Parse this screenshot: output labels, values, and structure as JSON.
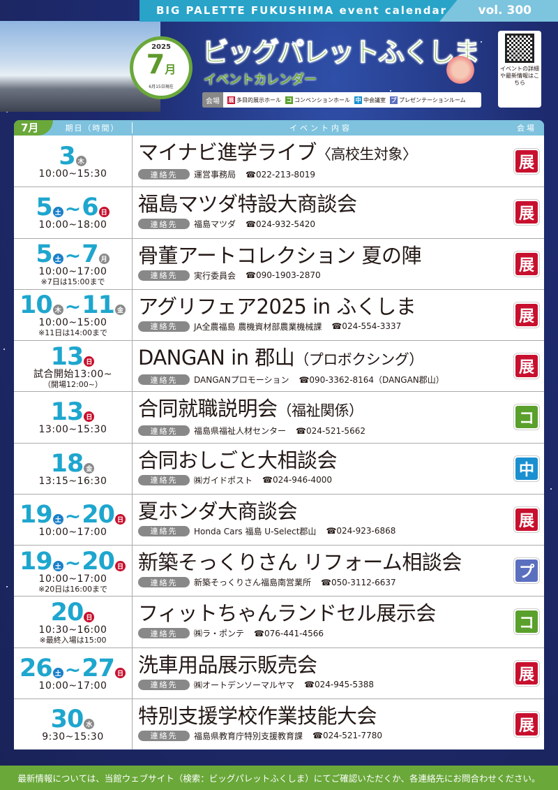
{
  "header": {
    "banner": "BIG PALETTE FUKUSHIMA event calendar",
    "volume": "vol. 300",
    "year": "2025",
    "month": "7",
    "month_suffix": "月",
    "as_of": "6月15日現在",
    "title": "ビッグパレットふくしま",
    "subtitle": "イベントカレンダー",
    "qr_caption": "イベントの詳細や最新情報はこちら"
  },
  "legend": {
    "label": "会場",
    "items": [
      {
        "badge": "展",
        "name": "多目的展示ホール",
        "color": "#c8102e"
      },
      {
        "badge": "コ",
        "name": "コンベンションホール",
        "color": "#5aa02c"
      },
      {
        "badge": "中",
        "name": "中会議室",
        "color": "#1a90d0"
      },
      {
        "badge": "プ",
        "name": "プレゼンテーションルーム",
        "color": "#5b6fbf"
      }
    ]
  },
  "colors": {
    "weekday": "#8a8a8a",
    "saturday": "#1a7fc8",
    "sunday": "#c8102e",
    "date": "#1ea6ce",
    "green": "#6aa83a"
  },
  "table": {
    "month_tab": "7月",
    "col_date": "期日（時間）",
    "col_event": "イベント内容",
    "col_venue": "会場",
    "contact_label": "連絡先",
    "events": [
      {
        "dates": [
          {
            "d": "3",
            "w": "木",
            "t": "weekday"
          }
        ],
        "time": "10:00~15:30",
        "note": "",
        "name": "マイナビ進学ライブ",
        "name_sub": "〈高校生対象〉",
        "contact": "運営事務局",
        "phone": "☎022-213-8019",
        "venue": "展",
        "venue_color": "#c8102e"
      },
      {
        "dates": [
          {
            "d": "5",
            "w": "土",
            "t": "saturday"
          },
          {
            "d": "6",
            "w": "日",
            "t": "sunday"
          }
        ],
        "time": "10:00~18:00",
        "note": "",
        "name": "福島マツダ特設大商談会",
        "name_sub": "",
        "contact": "福島マツダ",
        "phone": "☎024-932-5420",
        "venue": "展",
        "venue_color": "#c8102e"
      },
      {
        "dates": [
          {
            "d": "5",
            "w": "土",
            "t": "saturday"
          },
          {
            "d": "7",
            "w": "月",
            "t": "weekday"
          }
        ],
        "time": "10:00~17:00",
        "note": "※7日は15:00まで",
        "name": "骨董アートコレクション 夏の陣",
        "name_sub": "",
        "contact": "実行委員会",
        "phone": "☎090-1903-2870",
        "venue": "展",
        "venue_color": "#c8102e"
      },
      {
        "dates": [
          {
            "d": "10",
            "w": "木",
            "t": "weekday"
          },
          {
            "d": "11",
            "w": "金",
            "t": "weekday"
          }
        ],
        "time": "10:00~15:00",
        "note": "※11日は14:00まで",
        "name": "アグリフェア2025 in ふくしま",
        "name_sub": "",
        "contact": "JA全農福島 農機資材部農業機械課",
        "phone": "☎024-554-3337",
        "venue": "展",
        "venue_color": "#c8102e"
      },
      {
        "dates": [
          {
            "d": "13",
            "w": "日",
            "t": "sunday"
          }
        ],
        "time": "試合開始13:00~",
        "note": "（開場12:00~）",
        "name": "DANGAN in 郡山",
        "name_sub": "（プロボクシング）",
        "contact": "DANGANプロモーション",
        "phone": "☎090-3362-8164（DANGAN郡山）",
        "venue": "展",
        "venue_color": "#c8102e"
      },
      {
        "dates": [
          {
            "d": "13",
            "w": "日",
            "t": "sunday"
          }
        ],
        "time": "13:00~15:30",
        "note": "",
        "name": "合同就職説明会",
        "name_sub": "（福祉関係）",
        "contact": "福島県福祉人材センター",
        "phone": "☎024-521-5662",
        "venue": "コ",
        "venue_color": "#5aa02c"
      },
      {
        "dates": [
          {
            "d": "18",
            "w": "金",
            "t": "weekday"
          }
        ],
        "time": "13:15~16:30",
        "note": "",
        "name": "合同おしごと大相談会",
        "name_sub": "",
        "contact": "㈱ガイドポスト",
        "phone": "☎024-946-4000",
        "venue": "中",
        "venue_color": "#1a90d0"
      },
      {
        "dates": [
          {
            "d": "19",
            "w": "土",
            "t": "saturday"
          },
          {
            "d": "20",
            "w": "日",
            "t": "sunday"
          }
        ],
        "time": "10:00~17:00",
        "note": "",
        "name": "夏ホンダ大商談会",
        "name_sub": "",
        "contact": "Honda Cars 福島 U-Select郡山",
        "phone": "☎024-923-6868",
        "venue": "展",
        "venue_color": "#c8102e"
      },
      {
        "dates": [
          {
            "d": "19",
            "w": "土",
            "t": "saturday"
          },
          {
            "d": "20",
            "w": "日",
            "t": "sunday"
          }
        ],
        "time": "10:00~17:00",
        "note": "※20日は16:00まで",
        "name": "新築そっくりさん リフォーム相談会",
        "name_sub": "",
        "contact": "新築そっくりさん福島南営業所",
        "phone": "☎050-3112-6637",
        "venue": "プ",
        "venue_color": "#5b6fbf"
      },
      {
        "dates": [
          {
            "d": "20",
            "w": "日",
            "t": "sunday"
          }
        ],
        "time": "10:30~16:00",
        "note": "※最終入場は15:00",
        "name": "フィットちゃんランドセル展示会",
        "name_sub": "",
        "contact": "㈱ラ・ポンテ",
        "phone": "☎076-441-4566",
        "venue": "コ",
        "venue_color": "#5aa02c"
      },
      {
        "dates": [
          {
            "d": "26",
            "w": "土",
            "t": "saturday"
          },
          {
            "d": "27",
            "w": "日",
            "t": "sunday"
          }
        ],
        "time": "10:00~17:00",
        "note": "",
        "name": "洗車用品展示販売会",
        "name_sub": "",
        "contact": "㈱オートデンソーマルヤマ",
        "phone": "☎024-945-5388",
        "venue": "展",
        "venue_color": "#c8102e"
      },
      {
        "dates": [
          {
            "d": "30",
            "w": "水",
            "t": "weekday"
          }
        ],
        "time": "9:30~15:30",
        "note": "",
        "name": "特別支援学校作業技能大会",
        "name_sub": "",
        "contact": "福島県教育庁特別支援教育課",
        "phone": "☎024-521-7780",
        "venue": "展",
        "venue_color": "#c8102e"
      }
    ]
  },
  "footer": {
    "text": "最新情報については、当館ウェブサイト（検索：ビッグパレットふくしま）にてご確認いただくか、各連絡先にお問合わせください。"
  }
}
